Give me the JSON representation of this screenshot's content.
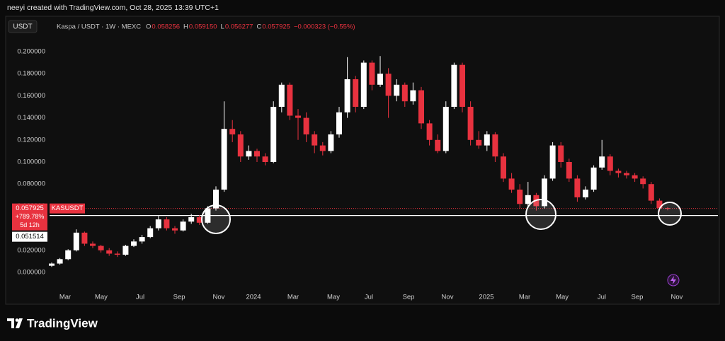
{
  "header": {
    "credit": "neeyi created with TradingView.com, Oct 28, 2025 13:39 UTC+1"
  },
  "footer": {
    "brand": "TradingView"
  },
  "chart_data": {
    "type": "candlestick",
    "currency_button": "USDT",
    "title": "Kaspa / USDT · 1W · MEXC",
    "ohlc_legend": [
      {
        "key": "O",
        "text": "0.058256"
      },
      {
        "key": "H",
        "text": "0.059150"
      },
      {
        "key": "L",
        "text": "0.056277"
      },
      {
        "key": "C",
        "text": "0.057925"
      }
    ],
    "change_text": "−0.000323 (−0.55%)",
    "up_color": "#ffffff",
    "down_color": "#e8323f",
    "ylim": [
      -0.0096,
      0.2096
    ],
    "yticks": [
      {
        "value": 0,
        "label": "0.000000"
      },
      {
        "value": 0.02,
        "label": "0.020000"
      },
      {
        "value": 0.04,
        "label": "0.040000"
      },
      {
        "value": 0.06,
        "label": "0.060000"
      },
      {
        "value": 0.08,
        "label": "0.080000"
      },
      {
        "value": 0.1,
        "label": "0.100000"
      },
      {
        "value": 0.12,
        "label": "0.120000"
      },
      {
        "value": 0.14,
        "label": "0.140000"
      },
      {
        "value": 0.16,
        "label": "0.160000"
      },
      {
        "value": 0.18,
        "label": "0.180000"
      },
      {
        "value": 0.2,
        "label": "0.200000"
      }
    ],
    "xticks": [
      {
        "value": 1.64,
        "label": "Mar"
      },
      {
        "value": 6.03,
        "label": "May"
      },
      {
        "value": 10.78,
        "label": "Jul"
      },
      {
        "value": 15.52,
        "label": "Sep"
      },
      {
        "value": 20.34,
        "label": "Nov"
      },
      {
        "value": 24.57,
        "label": "2024"
      },
      {
        "value": 29.4,
        "label": "Mar"
      },
      {
        "value": 34.31,
        "label": "May"
      },
      {
        "value": 38.62,
        "label": "Jul"
      },
      {
        "value": 43.45,
        "label": "Sep"
      },
      {
        "value": 48.19,
        "label": "Nov"
      },
      {
        "value": 52.93,
        "label": "2025"
      },
      {
        "value": 57.59,
        "label": "Mar"
      },
      {
        "value": 62.16,
        "label": "May"
      },
      {
        "value": 66.98,
        "label": "Jul"
      },
      {
        "value": 71.29,
        "label": "Sep"
      },
      {
        "value": 76.12,
        "label": "Nov"
      }
    ],
    "candles": [
      [
        0.006,
        0.009,
        0.005,
        0.008
      ],
      [
        0.008,
        0.013,
        0.007,
        0.012
      ],
      [
        0.012,
        0.021,
        0.011,
        0.02
      ],
      [
        0.02,
        0.039,
        0.019,
        0.036
      ],
      [
        0.036,
        0.037,
        0.024,
        0.026
      ],
      [
        0.026,
        0.028,
        0.022,
        0.024
      ],
      [
        0.024,
        0.025,
        0.018,
        0.02
      ],
      [
        0.02,
        0.022,
        0.015,
        0.017
      ],
      [
        0.017,
        0.019,
        0.014,
        0.016
      ],
      [
        0.016,
        0.025,
        0.015,
        0.024
      ],
      [
        0.024,
        0.03,
        0.023,
        0.028
      ],
      [
        0.028,
        0.034,
        0.026,
        0.032
      ],
      [
        0.032,
        0.042,
        0.031,
        0.04
      ],
      [
        0.04,
        0.051,
        0.038,
        0.048
      ],
      [
        0.048,
        0.05,
        0.038,
        0.04
      ],
      [
        0.04,
        0.042,
        0.035,
        0.038
      ],
      [
        0.038,
        0.048,
        0.037,
        0.046
      ],
      [
        0.046,
        0.053,
        0.044,
        0.05
      ],
      [
        0.05,
        0.052,
        0.043,
        0.045
      ],
      [
        0.045,
        0.06,
        0.044,
        0.058
      ],
      [
        0.058,
        0.078,
        0.056,
        0.075
      ],
      [
        0.075,
        0.155,
        0.073,
        0.13
      ],
      [
        0.13,
        0.138,
        0.118,
        0.125
      ],
      [
        0.125,
        0.128,
        0.1,
        0.105
      ],
      [
        0.105,
        0.115,
        0.102,
        0.11
      ],
      [
        0.11,
        0.112,
        0.1,
        0.105
      ],
      [
        0.105,
        0.108,
        0.097,
        0.1
      ],
      [
        0.1,
        0.155,
        0.099,
        0.15
      ],
      [
        0.15,
        0.172,
        0.145,
        0.17
      ],
      [
        0.17,
        0.172,
        0.138,
        0.142
      ],
      [
        0.142,
        0.148,
        0.12,
        0.14
      ],
      [
        0.14,
        0.145,
        0.118,
        0.125
      ],
      [
        0.125,
        0.128,
        0.108,
        0.115
      ],
      [
        0.115,
        0.118,
        0.106,
        0.11
      ],
      [
        0.11,
        0.128,
        0.108,
        0.125
      ],
      [
        0.125,
        0.15,
        0.122,
        0.145
      ],
      [
        0.145,
        0.195,
        0.14,
        0.175
      ],
      [
        0.175,
        0.178,
        0.145,
        0.15
      ],
      [
        0.15,
        0.192,
        0.148,
        0.19
      ],
      [
        0.19,
        0.192,
        0.165,
        0.17
      ],
      [
        0.17,
        0.196,
        0.168,
        0.18
      ],
      [
        0.18,
        0.185,
        0.14,
        0.16
      ],
      [
        0.16,
        0.175,
        0.155,
        0.17
      ],
      [
        0.17,
        0.172,
        0.15,
        0.155
      ],
      [
        0.155,
        0.172,
        0.152,
        0.165
      ],
      [
        0.165,
        0.168,
        0.13,
        0.135
      ],
      [
        0.135,
        0.138,
        0.115,
        0.12
      ],
      [
        0.12,
        0.125,
        0.108,
        0.11
      ],
      [
        0.11,
        0.155,
        0.108,
        0.15
      ],
      [
        0.15,
        0.19,
        0.148,
        0.188
      ],
      [
        0.188,
        0.19,
        0.145,
        0.15
      ],
      [
        0.15,
        0.155,
        0.115,
        0.12
      ],
      [
        0.12,
        0.128,
        0.112,
        0.115
      ],
      [
        0.115,
        0.128,
        0.11,
        0.125
      ],
      [
        0.125,
        0.127,
        0.1,
        0.105
      ],
      [
        0.105,
        0.108,
        0.082,
        0.085
      ],
      [
        0.085,
        0.09,
        0.072,
        0.075
      ],
      [
        0.075,
        0.08,
        0.058,
        0.062
      ],
      [
        0.062,
        0.082,
        0.06,
        0.07
      ],
      [
        0.07,
        0.072,
        0.056,
        0.06
      ],
      [
        0.06,
        0.088,
        0.058,
        0.085
      ],
      [
        0.085,
        0.118,
        0.083,
        0.115
      ],
      [
        0.115,
        0.118,
        0.095,
        0.1
      ],
      [
        0.1,
        0.103,
        0.082,
        0.085
      ],
      [
        0.085,
        0.088,
        0.064,
        0.068
      ],
      [
        0.068,
        0.078,
        0.066,
        0.075
      ],
      [
        0.075,
        0.097,
        0.073,
        0.095
      ],
      [
        0.095,
        0.12,
        0.093,
        0.105
      ],
      [
        0.105,
        0.107,
        0.088,
        0.092
      ],
      [
        0.092,
        0.094,
        0.086,
        0.09
      ],
      [
        0.09,
        0.092,
        0.085,
        0.088
      ],
      [
        0.088,
        0.09,
        0.082,
        0.085
      ],
      [
        0.085,
        0.087,
        0.076,
        0.08
      ],
      [
        0.08,
        0.082,
        0.062,
        0.065
      ],
      [
        0.065,
        0.067,
        0.055,
        0.058256
      ],
      [
        0.058256,
        0.05915,
        0.056277,
        0.057925
      ]
    ],
    "current_price": {
      "value": 0.057925,
      "label": "0.057925"
    },
    "symbol_tag": "KASUSDT",
    "change_tag": "+789.78%",
    "countdown": "5d 12h",
    "reference_line": {
      "value": 0.051514,
      "label": "0.051514"
    }
  }
}
